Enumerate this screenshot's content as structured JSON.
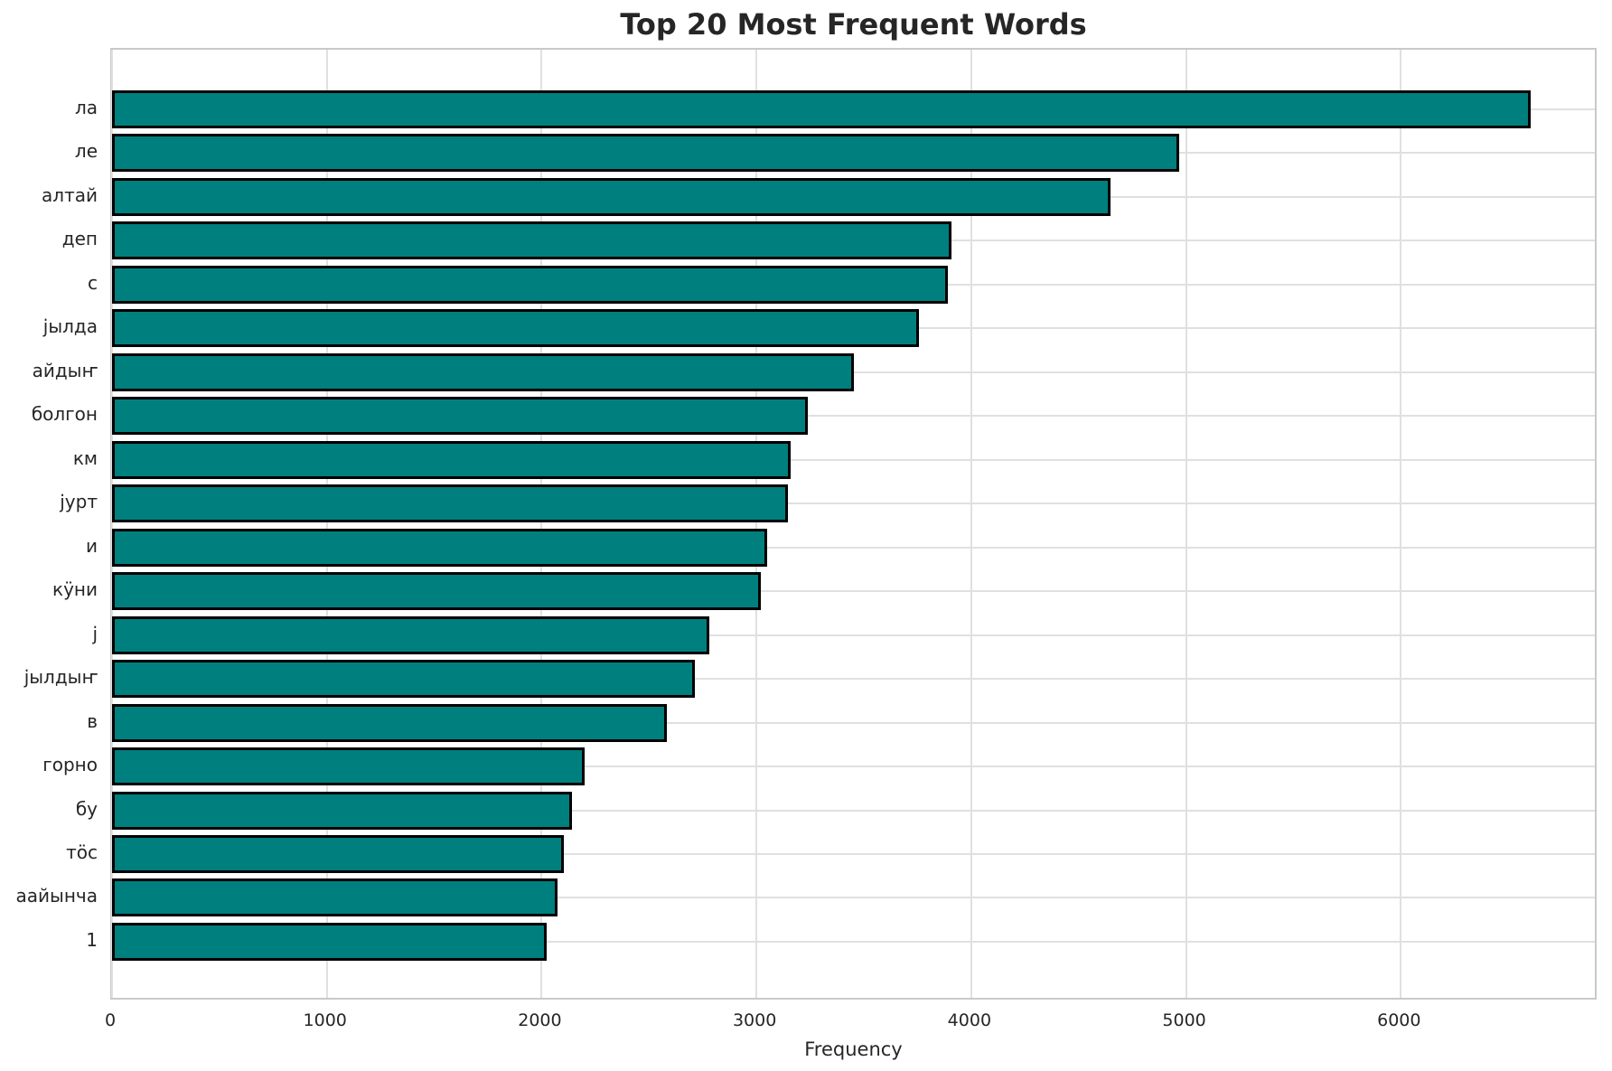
{
  "title": "Top 20 Most Frequent Words",
  "chart_data": {
    "type": "bar",
    "orientation": "horizontal",
    "title": "Top 20 Most Frequent Words",
    "xlabel": "Frequency",
    "ylabel": "",
    "categories": [
      "ла",
      "ле",
      "алтай",
      "деп",
      "с",
      "јылда",
      "айдыҥ",
      "болгон",
      "км",
      "јурт",
      "и",
      "кӱни",
      "ј",
      "јылдыҥ",
      "в",
      "горно",
      "бу",
      "тöс",
      "аайынча",
      "1"
    ],
    "values": [
      6605,
      4970,
      4650,
      3910,
      3890,
      3755,
      3455,
      3240,
      3160,
      3145,
      3050,
      3020,
      2780,
      2715,
      2585,
      2200,
      2140,
      2105,
      2075,
      2025
    ],
    "xlim": [
      0,
      6920
    ],
    "xticks": [
      0,
      1000,
      2000,
      3000,
      4000,
      5000,
      6000
    ],
    "grid": true,
    "legend": null,
    "colors": {
      "bar_fill": "#007f7f",
      "bar_edge": "#000000",
      "grid": "#e0e0e0",
      "spine": "#c9c9c9",
      "text": "#262626"
    }
  }
}
